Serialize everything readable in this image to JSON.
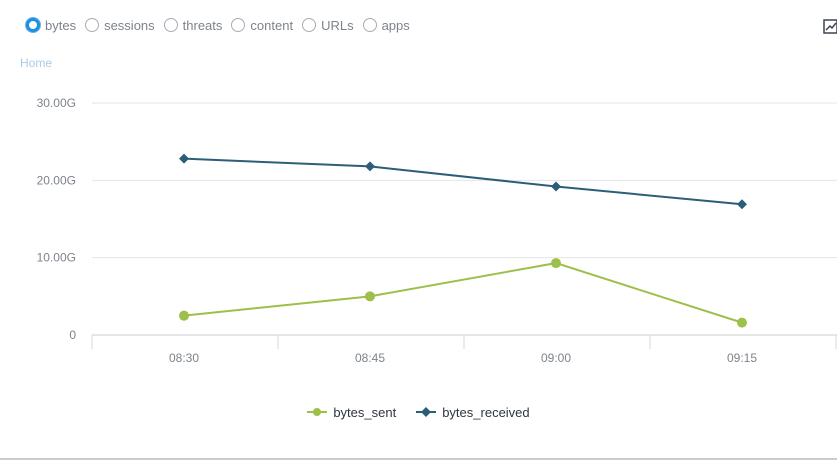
{
  "view_selector": {
    "options": [
      {
        "label": "bytes",
        "selected": true
      },
      {
        "label": "sessions",
        "selected": false
      },
      {
        "label": "threats",
        "selected": false
      },
      {
        "label": "content",
        "selected": false
      },
      {
        "label": "URLs",
        "selected": false
      },
      {
        "label": "apps",
        "selected": false
      }
    ]
  },
  "toolbar": {
    "export_icon": "chart-export-icon"
  },
  "breadcrumb": {
    "label": "Home"
  },
  "colors": {
    "bytes_sent": "#9dc04b",
    "bytes_received": "#2c5e7a",
    "grid": "#e2e4e8",
    "axis_text": "#7d838c",
    "selected_radio": "#1f8fe0"
  },
  "chart_data": {
    "type": "line",
    "x": [
      "08:30",
      "08:45",
      "09:00",
      "09:15"
    ],
    "y_ticks": [
      "0",
      "10.00G",
      "20.00G",
      "30.00G"
    ],
    "ylim": [
      0,
      30
    ],
    "y_unit": "G",
    "grid": true,
    "legend_position": "bottom-center",
    "series": [
      {
        "name": "bytes_sent",
        "marker": "circle",
        "values": [
          2.5,
          5.0,
          9.3,
          1.6
        ]
      },
      {
        "name": "bytes_received",
        "marker": "diamond",
        "values": [
          22.8,
          21.8,
          19.2,
          16.9
        ]
      }
    ]
  }
}
